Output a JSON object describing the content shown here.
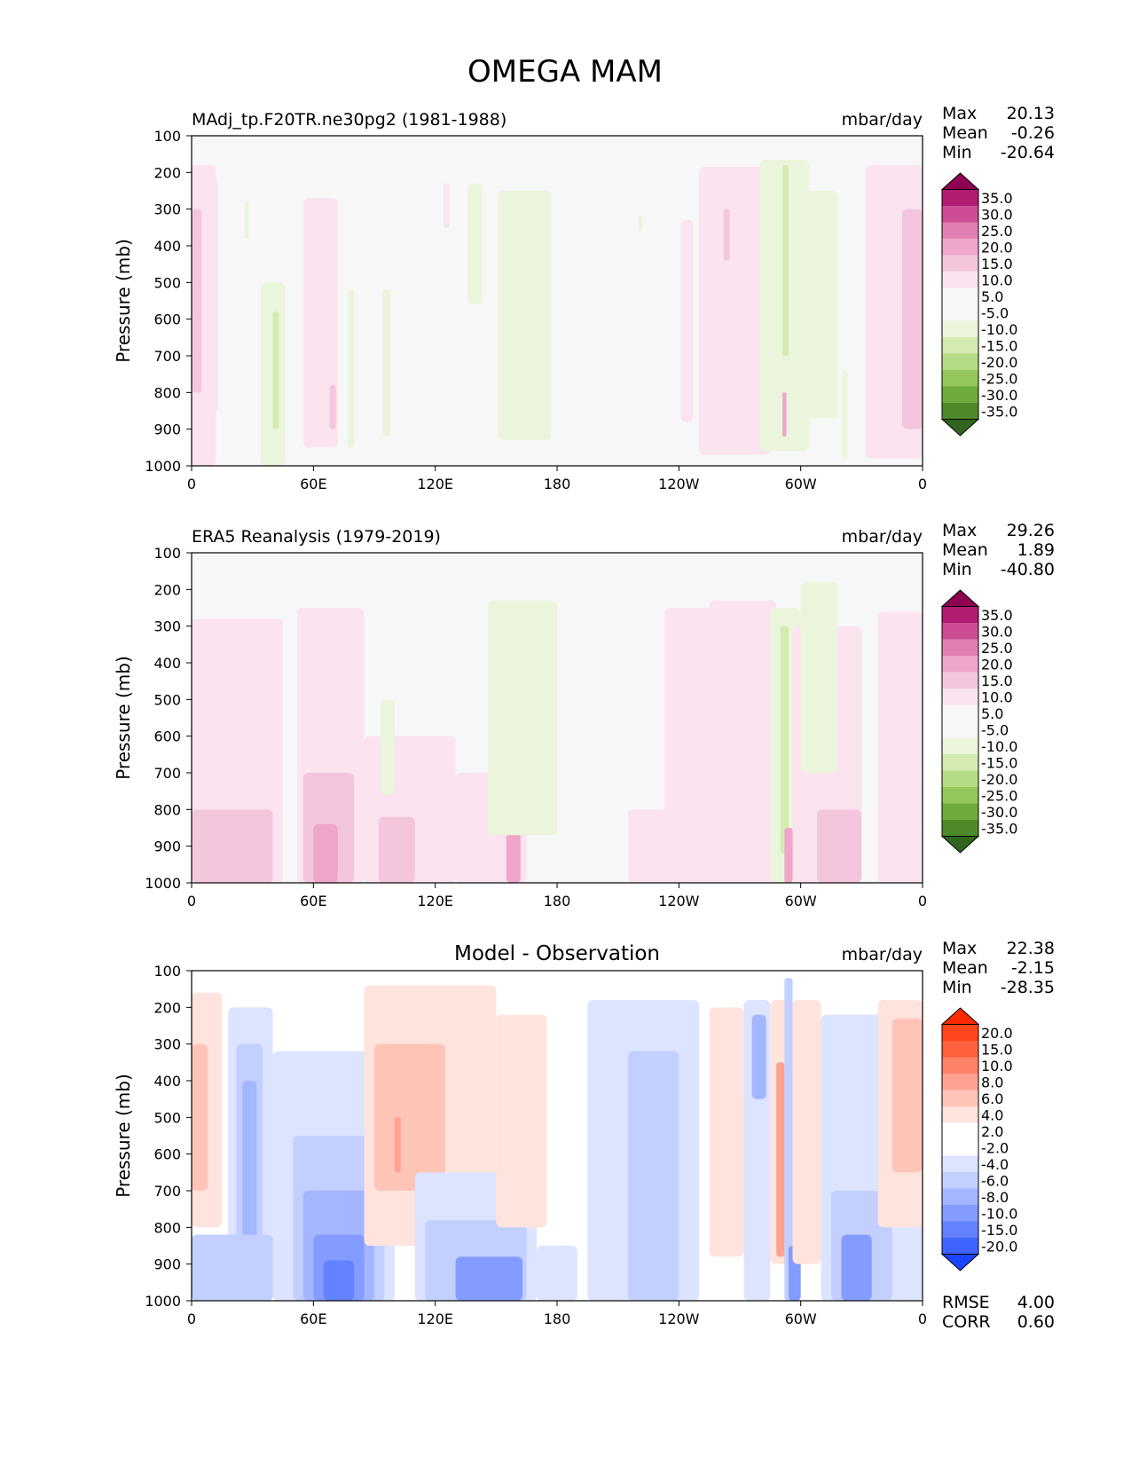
{
  "figure_title": "OMEGA MAM",
  "colors": {
    "field_pos": [
      "#fbe3ef",
      "#f4c6dd",
      "#eea6ca",
      "#e17fb2",
      "#cc4d93",
      "#b01d72",
      "#8e0152"
    ],
    "field_neg": [
      "#eaf5dc",
      "#d3ebb1",
      "#b5dc85",
      "#93c75c",
      "#6fab3c",
      "#4f8a2a",
      "#2f651c"
    ],
    "field_neutral": "#f7f7f7",
    "diff_pos": [
      "#ffe3dd",
      "#ffc4b8",
      "#ffa291",
      "#ff8167",
      "#ff613e",
      "#ff451c",
      "#ff2a00"
    ],
    "diff_neg": [
      "#dce4ff",
      "#c2cfff",
      "#a3b6ff",
      "#849cff",
      "#6382ff",
      "#3f63ff",
      "#1a44ff"
    ],
    "diff_neutral": "#ffffff"
  },
  "chart_data": [
    {
      "type": "heatmap",
      "title": "MAdj_tp.F20TR.ne30pg2 (1981-1988)",
      "units": "mbar/day",
      "ylabel": "Pressure (mb)",
      "x_ticklabels": [
        "0",
        "60E",
        "120E",
        "180",
        "120W",
        "60W",
        "0"
      ],
      "xlim": [
        0,
        360
      ],
      "y_ticklabels": [
        "100",
        "200",
        "300",
        "400",
        "500",
        "600",
        "700",
        "800",
        "900",
        "1000"
      ],
      "ylim": [
        1000,
        100
      ],
      "stats": {
        "Max": "20.13",
        "Mean": "-0.26",
        "Min": "-20.64"
      },
      "colorbar_labels": [
        "35.0",
        "30.0",
        "25.0",
        "20.0",
        "15.0",
        "10.0",
        "5.0",
        "-5.0",
        "-10.0",
        "-15.0",
        "-20.0",
        "-25.0",
        "-30.0",
        "-35.0"
      ],
      "regions": [
        {
          "x": [
            0,
            12
          ],
          "p": [
            180,
            1000
          ],
          "level": 1
        },
        {
          "x": [
            0,
            5
          ],
          "p": [
            300,
            800
          ],
          "level": 2
        },
        {
          "x": [
            8,
            13
          ],
          "p": [
            220,
            850
          ],
          "level": 1
        },
        {
          "x": [
            26,
            28
          ],
          "p": [
            280,
            380
          ],
          "level": -1
        },
        {
          "x": [
            34,
            46
          ],
          "p": [
            500,
            1000
          ],
          "level": -1
        },
        {
          "x": [
            40,
            43
          ],
          "p": [
            580,
            900
          ],
          "level": -2
        },
        {
          "x": [
            55,
            72
          ],
          "p": [
            270,
            950
          ],
          "level": 1
        },
        {
          "x": [
            68,
            71
          ],
          "p": [
            780,
            900
          ],
          "level": 2
        },
        {
          "x": [
            77,
            80
          ],
          "p": [
            520,
            950
          ],
          "level": -1
        },
        {
          "x": [
            94,
            98
          ],
          "p": [
            520,
            920
          ],
          "level": -1
        },
        {
          "x": [
            124,
            127
          ],
          "p": [
            230,
            350
          ],
          "level": 1
        },
        {
          "x": [
            136,
            143
          ],
          "p": [
            230,
            560
          ],
          "level": -1
        },
        {
          "x": [
            151,
            177
          ],
          "p": [
            250,
            930
          ],
          "level": -1
        },
        {
          "x": [
            154,
            156
          ],
          "p": [
            790,
            920
          ],
          "level": -1
        },
        {
          "x": [
            220,
            222
          ],
          "p": [
            320,
            360
          ],
          "level": -1
        },
        {
          "x": [
            241,
            247
          ],
          "p": [
            330,
            880
          ],
          "level": 1
        },
        {
          "x": [
            250,
            285
          ],
          "p": [
            185,
            970
          ],
          "level": 1
        },
        {
          "x": [
            262,
            265
          ],
          "p": [
            300,
            440
          ],
          "level": 2
        },
        {
          "x": [
            280,
            304
          ],
          "p": [
            165,
            960
          ],
          "level": -1
        },
        {
          "x": [
            291,
            294
          ],
          "p": [
            180,
            700
          ],
          "level": -2
        },
        {
          "x": [
            291,
            293
          ],
          "p": [
            800,
            920
          ],
          "level": 3
        },
        {
          "x": [
            301,
            318
          ],
          "p": [
            250,
            870
          ],
          "level": -1
        },
        {
          "x": [
            320,
            323
          ],
          "p": [
            740,
            980
          ],
          "level": -1
        },
        {
          "x": [
            332,
            360
          ],
          "p": [
            180,
            980
          ],
          "level": 1
        },
        {
          "x": [
            350,
            360
          ],
          "p": [
            300,
            900
          ],
          "level": 2
        }
      ]
    },
    {
      "type": "heatmap",
      "title": "ERA5 Reanalysis (1979-2019)",
      "units": "mbar/day",
      "ylabel": "Pressure (mb)",
      "x_ticklabels": [
        "0",
        "60E",
        "120E",
        "180",
        "120W",
        "60W",
        "0"
      ],
      "xlim": [
        0,
        360
      ],
      "y_ticklabels": [
        "100",
        "200",
        "300",
        "400",
        "500",
        "600",
        "700",
        "800",
        "900",
        "1000"
      ],
      "ylim": [
        1000,
        100
      ],
      "stats": {
        "Max": "29.26",
        "Mean": "1.89",
        "Min": "-40.80"
      },
      "colorbar_labels": [
        "35.0",
        "30.0",
        "25.0",
        "20.0",
        "15.0",
        "10.0",
        "5.0",
        "-5.0",
        "-10.0",
        "-15.0",
        "-20.0",
        "-25.0",
        "-30.0",
        "-35.0"
      ],
      "regions": [
        {
          "x": [
            0,
            45
          ],
          "p": [
            280,
            1000
          ],
          "level": 1
        },
        {
          "x": [
            0,
            40
          ],
          "p": [
            800,
            1000
          ],
          "level": 2
        },
        {
          "x": [
            52,
            85
          ],
          "p": [
            250,
            1000
          ],
          "level": 1
        },
        {
          "x": [
            55,
            80
          ],
          "p": [
            700,
            1000
          ],
          "level": 2
        },
        {
          "x": [
            60,
            72
          ],
          "p": [
            840,
            1000
          ],
          "level": 3
        },
        {
          "x": [
            85,
            130
          ],
          "p": [
            600,
            1000
          ],
          "level": 1
        },
        {
          "x": [
            92,
            110
          ],
          "p": [
            820,
            1000
          ],
          "level": 2
        },
        {
          "x": [
            93,
            100
          ],
          "p": [
            500,
            760
          ],
          "level": -1
        },
        {
          "x": [
            130,
            165
          ],
          "p": [
            700,
            1000
          ],
          "level": 1
        },
        {
          "x": [
            155,
            162
          ],
          "p": [
            820,
            1000
          ],
          "level": 3
        },
        {
          "x": [
            146,
            180
          ],
          "p": [
            230,
            870
          ],
          "level": -1
        },
        {
          "x": [
            215,
            250
          ],
          "p": [
            800,
            1000
          ],
          "level": 1
        },
        {
          "x": [
            233,
            260
          ],
          "p": [
            250,
            1000
          ],
          "level": 1
        },
        {
          "x": [
            255,
            288
          ],
          "p": [
            230,
            1000
          ],
          "level": 1
        },
        {
          "x": [
            285,
            300
          ],
          "p": [
            250,
            1000
          ],
          "level": -1
        },
        {
          "x": [
            290,
            294
          ],
          "p": [
            300,
            920
          ],
          "level": -2
        },
        {
          "x": [
            292,
            296
          ],
          "p": [
            850,
            1000
          ],
          "level": 3
        },
        {
          "x": [
            296,
            330
          ],
          "p": [
            300,
            1000
          ],
          "level": 1
        },
        {
          "x": [
            308,
            330
          ],
          "p": [
            800,
            1000
          ],
          "level": 2
        },
        {
          "x": [
            300,
            318
          ],
          "p": [
            180,
            700
          ],
          "level": -1
        },
        {
          "x": [
            338,
            360
          ],
          "p": [
            260,
            1000
          ],
          "level": 1
        }
      ]
    },
    {
      "type": "heatmap",
      "title": "Model - Observation",
      "units": "mbar/day",
      "ylabel": "Pressure (mb)",
      "x_ticklabels": [
        "0",
        "60E",
        "120E",
        "180",
        "120W",
        "60W",
        "0"
      ],
      "xlim": [
        0,
        360
      ],
      "y_ticklabels": [
        "100",
        "200",
        "300",
        "400",
        "500",
        "600",
        "700",
        "800",
        "900",
        "1000"
      ],
      "ylim": [
        1000,
        100
      ],
      "stats": {
        "Max": "22.38",
        "Mean": "-2.15",
        "Min": "-28.35"
      },
      "colorbar_labels": [
        "20.0",
        "15.0",
        "10.0",
        "8.0",
        "6.0",
        "4.0",
        "2.0",
        "-2.0",
        "-4.0",
        "-6.0",
        "-8.0",
        "-10.0",
        "-15.0",
        "-20.0"
      ],
      "rmse": "4.00",
      "corr": "0.60",
      "regions": [
        {
          "x": [
            0,
            15
          ],
          "p": [
            160,
            800
          ],
          "level": 1
        },
        {
          "x": [
            0,
            8
          ],
          "p": [
            300,
            700
          ],
          "level": 2
        },
        {
          "x": [
            18,
            40
          ],
          "p": [
            200,
            1000
          ],
          "level": -1
        },
        {
          "x": [
            22,
            35
          ],
          "p": [
            300,
            1000
          ],
          "level": -2
        },
        {
          "x": [
            25,
            32
          ],
          "p": [
            400,
            1000
          ],
          "level": -3
        },
        {
          "x": [
            0,
            40
          ],
          "p": [
            820,
            1000
          ],
          "level": -2
        },
        {
          "x": [
            40,
            100
          ],
          "p": [
            320,
            1000
          ],
          "level": -1
        },
        {
          "x": [
            50,
            95
          ],
          "p": [
            550,
            1000
          ],
          "level": -2
        },
        {
          "x": [
            55,
            90
          ],
          "p": [
            700,
            1000
          ],
          "level": -3
        },
        {
          "x": [
            60,
            85
          ],
          "p": [
            820,
            1000
          ],
          "level": -4
        },
        {
          "x": [
            65,
            80
          ],
          "p": [
            890,
            1000
          ],
          "level": -5
        },
        {
          "x": [
            85,
            150
          ],
          "p": [
            140,
            850
          ],
          "level": 1
        },
        {
          "x": [
            90,
            125
          ],
          "p": [
            300,
            700
          ],
          "level": 2
        },
        {
          "x": [
            100,
            103
          ],
          "p": [
            500,
            650
          ],
          "level": 3
        },
        {
          "x": [
            110,
            170
          ],
          "p": [
            650,
            1000
          ],
          "level": -1
        },
        {
          "x": [
            115,
            165
          ],
          "p": [
            780,
            1000
          ],
          "level": -2
        },
        {
          "x": [
            130,
            163
          ],
          "p": [
            880,
            1000
          ],
          "level": -4
        },
        {
          "x": [
            150,
            175
          ],
          "p": [
            220,
            800
          ],
          "level": 1
        },
        {
          "x": [
            170,
            190
          ],
          "p": [
            850,
            1000
          ],
          "level": -1
        },
        {
          "x": [
            195,
            250
          ],
          "p": [
            180,
            1000
          ],
          "level": -1
        },
        {
          "x": [
            215,
            240
          ],
          "p": [
            320,
            1000
          ],
          "level": -2
        },
        {
          "x": [
            255,
            272
          ],
          "p": [
            200,
            880
          ],
          "level": 1
        },
        {
          "x": [
            272,
            285
          ],
          "p": [
            180,
            1000
          ],
          "level": -1
        },
        {
          "x": [
            276,
            283
          ],
          "p": [
            220,
            450
          ],
          "level": -3
        },
        {
          "x": [
            285,
            296
          ],
          "p": [
            180,
            900
          ],
          "level": 1
        },
        {
          "x": [
            288,
            292
          ],
          "p": [
            350,
            880
          ],
          "level": 3
        },
        {
          "x": [
            292,
            296
          ],
          "p": [
            120,
            1000
          ],
          "level": -2
        },
        {
          "x": [
            294,
            300
          ],
          "p": [
            850,
            1000
          ],
          "level": -4
        },
        {
          "x": [
            296,
            310
          ],
          "p": [
            180,
            900
          ],
          "level": 1
        },
        {
          "x": [
            310,
            360
          ],
          "p": [
            220,
            1000
          ],
          "level": -1
        },
        {
          "x": [
            315,
            345
          ],
          "p": [
            700,
            1000
          ],
          "level": -2
        },
        {
          "x": [
            320,
            335
          ],
          "p": [
            820,
            1000
          ],
          "level": -4
        },
        {
          "x": [
            338,
            360
          ],
          "p": [
            180,
            800
          ],
          "level": 1
        },
        {
          "x": [
            345,
            360
          ],
          "p": [
            230,
            650
          ],
          "level": 2
        }
      ]
    }
  ]
}
